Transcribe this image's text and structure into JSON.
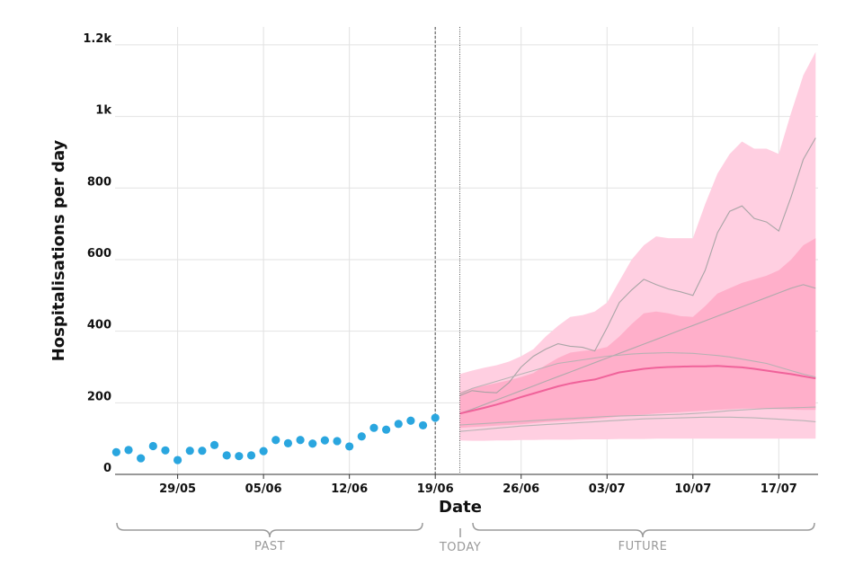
{
  "chart_data": {
    "type": "scatter",
    "title": "",
    "xlabel": "Date",
    "ylabel": "Hospitalisations per day",
    "ylim": [
      0,
      1250
    ],
    "grid": true,
    "y_ticks": [
      {
        "value": 0,
        "label": "0"
      },
      {
        "value": 200,
        "label": "200"
      },
      {
        "value": 400,
        "label": "400"
      },
      {
        "value": 600,
        "label": "600"
      },
      {
        "value": 800,
        "label": "800"
      },
      {
        "value": 1000,
        "label": "1k"
      },
      {
        "value": 1200,
        "label": "1.2k"
      }
    ],
    "x_ticks": [
      {
        "day": 5,
        "label": "29/05"
      },
      {
        "day": 12,
        "label": "05/06"
      },
      {
        "day": 19,
        "label": "12/06"
      },
      {
        "day": 26,
        "label": "19/06"
      },
      {
        "day": 33,
        "label": "26/06"
      },
      {
        "day": 40,
        "label": "03/07"
      },
      {
        "day": 47,
        "label": "10/07"
      },
      {
        "day": 54,
        "label": "17/07"
      }
    ],
    "x_range_days": [
      -0.1,
      57.2
    ],
    "today_line_day": 26,
    "forecast_start_day": 28,
    "observed": {
      "name": "Observed",
      "color": "#2aa6df",
      "days": [
        0,
        1,
        2,
        3,
        4,
        5,
        6,
        7,
        8,
        9,
        10,
        11,
        12,
        13,
        14,
        15,
        16,
        17,
        18,
        19,
        20,
        21,
        22,
        23,
        24,
        25,
        26
      ],
      "values": [
        62,
        68,
        45,
        79,
        67,
        40,
        66,
        66,
        82,
        53,
        51,
        53,
        65,
        96,
        87,
        96,
        86,
        95,
        93,
        78,
        106,
        130,
        125,
        141,
        150,
        137,
        158
      ]
    },
    "forecast": {
      "days": [
        28,
        29,
        30,
        31,
        32,
        33,
        34,
        35,
        36,
        37,
        38,
        39,
        40,
        41,
        42,
        43,
        44,
        45,
        46,
        47,
        48,
        49,
        50,
        51,
        52,
        53,
        54,
        55,
        56,
        57
      ],
      "band_outer": {
        "color": "#ffcfe1",
        "upper": [
          280,
          290,
          298,
          305,
          315,
          330,
          350,
          385,
          415,
          440,
          445,
          455,
          480,
          540,
          600,
          640,
          665,
          660,
          660,
          660,
          755,
          840,
          895,
          930,
          910,
          910,
          895,
          1010,
          1115,
          1180
        ],
        "lower": [
          95,
          94,
          94,
          95,
          95,
          96,
          96,
          97,
          97,
          97,
          98,
          98,
          98,
          99,
          99,
          99,
          100,
          100,
          100,
          100,
          100,
          100,
          100,
          100,
          100,
          100,
          100,
          100,
          100,
          100
        ]
      },
      "band_inner": {
        "color": "#ffadc8",
        "upper": [
          230,
          240,
          248,
          255,
          263,
          272,
          283,
          305,
          325,
          340,
          345,
          348,
          356,
          385,
          420,
          450,
          455,
          450,
          442,
          440,
          470,
          505,
          520,
          535,
          545,
          555,
          570,
          600,
          640,
          660
        ],
        "lower": [
          130,
          132,
          134,
          136,
          138,
          140,
          143,
          146,
          148,
          150,
          152,
          155,
          158,
          162,
          165,
          167,
          170,
          172,
          174,
          176,
          178,
          180,
          182,
          184,
          184,
          183,
          182,
          181,
          180,
          180
        ]
      },
      "median": {
        "color": "#f0629a",
        "values": [
          170,
          178,
          186,
          195,
          205,
          216,
          226,
          236,
          246,
          254,
          260,
          265,
          275,
          285,
          290,
          295,
          298,
          300,
          301,
          302,
          302,
          303,
          301,
          299,
          295,
          290,
          285,
          280,
          274,
          268
        ]
      },
      "samples": [
        {
          "color": "#a0a0a0",
          "values": [
            220,
            234,
            230,
            228,
            256,
            300,
            330,
            350,
            365,
            358,
            355,
            345,
            410,
            480,
            515,
            545,
            530,
            518,
            510,
            500,
            570,
            675,
            735,
            750,
            715,
            705,
            680,
            775,
            880,
            940
          ]
        },
        {
          "color": "#a8a8a8",
          "values": [
            170,
            182,
            195,
            208,
            221,
            234,
            247,
            260,
            273,
            286,
            299,
            312,
            325,
            338,
            351,
            364,
            377,
            390,
            403,
            416,
            429,
            442,
            455,
            468,
            481,
            494,
            507,
            520,
            530,
            520
          ]
        },
        {
          "color": "#b0b0b0",
          "values": [
            225,
            240,
            250,
            260,
            270,
            280,
            290,
            300,
            310,
            315,
            320,
            325,
            330,
            333,
            336,
            338,
            339,
            340,
            339,
            338,
            335,
            332,
            328,
            322,
            316,
            310,
            300,
            290,
            280,
            272
          ]
        },
        {
          "color": "#b0b0b0",
          "values": [
            138,
            140,
            142,
            144,
            146,
            148,
            150,
            152,
            154,
            156,
            158,
            160,
            162,
            163,
            164,
            165,
            166,
            167,
            168,
            170,
            172,
            175,
            178,
            180,
            182,
            184,
            185,
            186,
            187,
            188
          ]
        },
        {
          "color": "#b0b0b0",
          "values": [
            120,
            123,
            126,
            129,
            132,
            135,
            137,
            139,
            141,
            143,
            145,
            147,
            149,
            151,
            153,
            155,
            156,
            157,
            158,
            159,
            160,
            160,
            160,
            159,
            158,
            156,
            154,
            152,
            150,
            147
          ]
        }
      ]
    },
    "periods": {
      "past": "PAST",
      "today": "TODAY",
      "future": "FUTURE"
    }
  }
}
